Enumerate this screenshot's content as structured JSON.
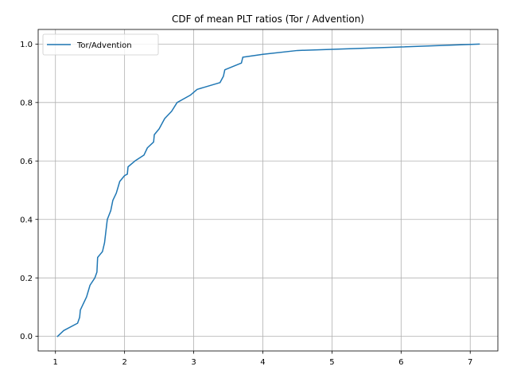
{
  "chart_data": {
    "type": "line",
    "title": "CDF of mean PLT ratios (Tor / Advention)",
    "xlabel": "",
    "ylabel": "",
    "xlim": [
      0.75,
      7.4
    ],
    "ylim": [
      -0.05,
      1.05
    ],
    "xticks": [
      1,
      2,
      3,
      4,
      5,
      6,
      7
    ],
    "yticks": [
      0.0,
      0.2,
      0.4,
      0.6,
      0.8,
      1.0
    ],
    "xtick_labels": [
      "1",
      "2",
      "3",
      "4",
      "5",
      "6",
      "7"
    ],
    "ytick_labels": [
      "0.0",
      "0.2",
      "0.4",
      "0.6",
      "0.8",
      "1.0"
    ],
    "grid": true,
    "legend_position": "top-left",
    "series": [
      {
        "name": "Tor/Advention",
        "color": "#1f77b4",
        "points": [
          [
            1.03,
            0.0
          ],
          [
            1.12,
            0.02
          ],
          [
            1.32,
            0.045
          ],
          [
            1.35,
            0.065
          ],
          [
            1.36,
            0.09
          ],
          [
            1.4,
            0.11
          ],
          [
            1.45,
            0.135
          ],
          [
            1.5,
            0.175
          ],
          [
            1.57,
            0.2
          ],
          [
            1.6,
            0.22
          ],
          [
            1.61,
            0.27
          ],
          [
            1.68,
            0.29
          ],
          [
            1.71,
            0.32
          ],
          [
            1.73,
            0.36
          ],
          [
            1.75,
            0.4
          ],
          [
            1.8,
            0.43
          ],
          [
            1.83,
            0.465
          ],
          [
            1.88,
            0.49
          ],
          [
            1.93,
            0.53
          ],
          [
            2.0,
            0.55
          ],
          [
            2.04,
            0.555
          ],
          [
            2.05,
            0.58
          ],
          [
            2.15,
            0.6
          ],
          [
            2.28,
            0.62
          ],
          [
            2.33,
            0.645
          ],
          [
            2.42,
            0.665
          ],
          [
            2.43,
            0.69
          ],
          [
            2.5,
            0.71
          ],
          [
            2.58,
            0.745
          ],
          [
            2.68,
            0.77
          ],
          [
            2.76,
            0.8
          ],
          [
            2.95,
            0.825
          ],
          [
            3.05,
            0.845
          ],
          [
            3.38,
            0.868
          ],
          [
            3.43,
            0.89
          ],
          [
            3.45,
            0.912
          ],
          [
            3.69,
            0.935
          ],
          [
            3.71,
            0.955
          ],
          [
            4.0,
            0.965
          ],
          [
            4.5,
            0.978
          ],
          [
            5.0,
            0.982
          ],
          [
            6.0,
            0.99
          ],
          [
            7.13,
            1.0
          ]
        ]
      }
    ]
  }
}
